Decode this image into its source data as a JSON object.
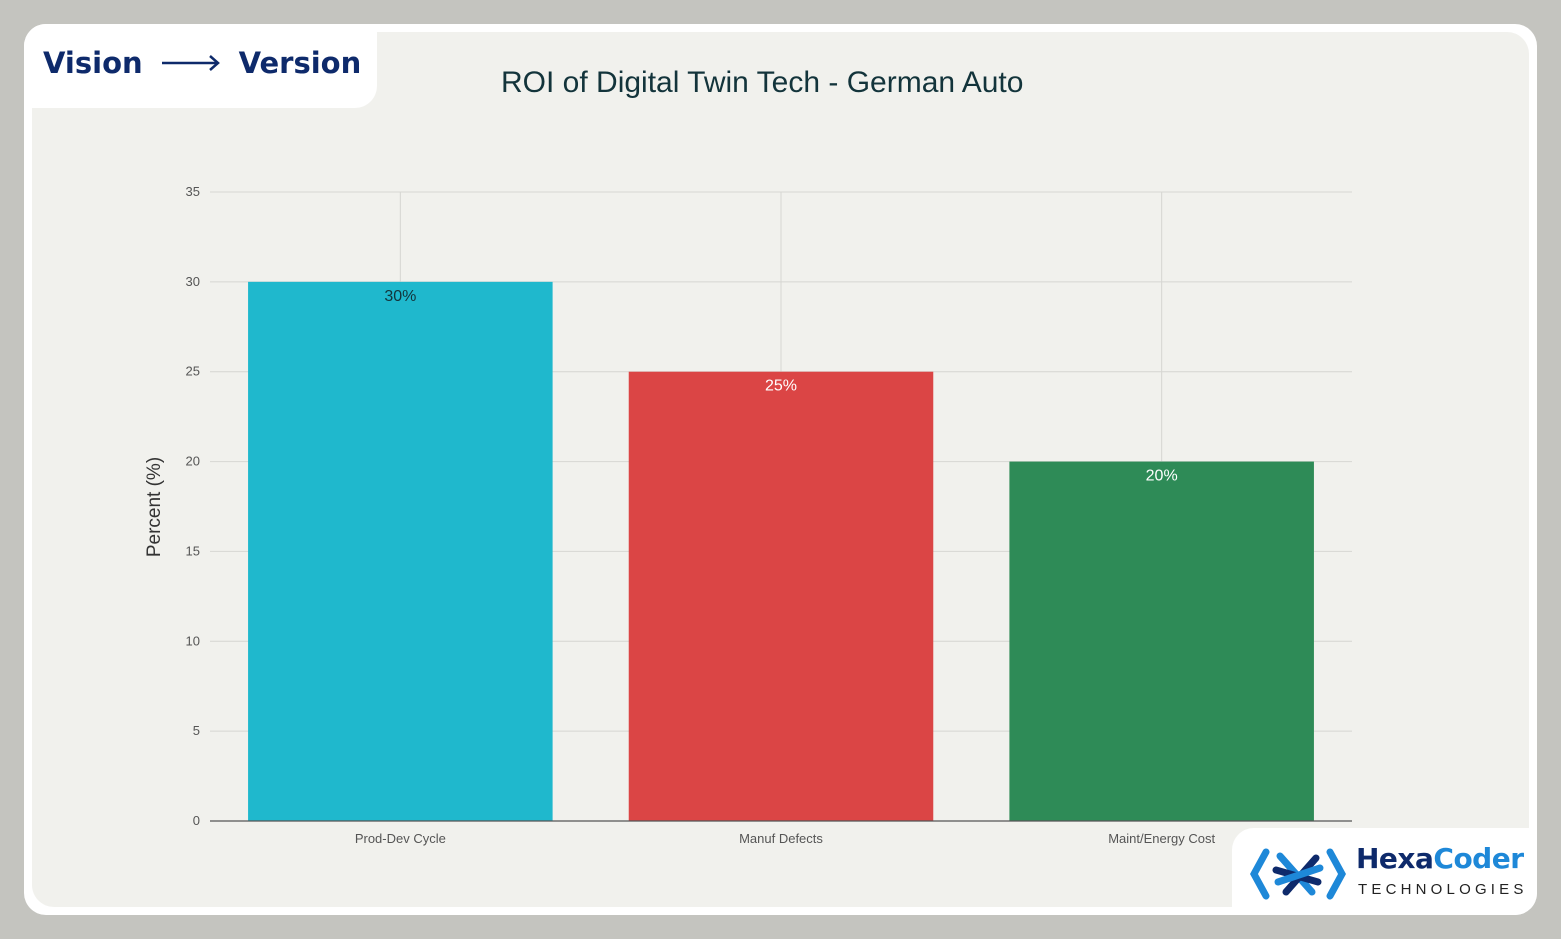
{
  "header": {
    "left": "Vision",
    "right": "Version",
    "arrow_icon": "long-right-arrow"
  },
  "logo": {
    "name_part1": "Hexa",
    "name_part2": "Coder",
    "subtitle": "TECHNOLOGIES",
    "icon": "hexacoder-brackets-icon",
    "colors": {
      "dark": "#0e2a6b",
      "light": "#1e88d8"
    }
  },
  "chart_data": {
    "type": "bar",
    "title": "ROI of Digital Twin Tech - German Auto",
    "xlabel": "",
    "ylabel": "Percent (%)",
    "categories": [
      "Prod-Dev Cycle",
      "Manuf Defects",
      "Maint/Energy Cost"
    ],
    "values": [
      30,
      25,
      20
    ],
    "data_labels": [
      "30%",
      "25%",
      "20%"
    ],
    "colors": [
      "#1fb8cd",
      "#db4545",
      "#2e8b57"
    ],
    "label_colors": [
      "#13343b",
      "#ffffff",
      "#ffffff"
    ],
    "ylim": [
      0,
      35
    ],
    "yticks": [
      0,
      5,
      10,
      15,
      20,
      25,
      30,
      35
    ],
    "grid": true,
    "legend": "none"
  }
}
